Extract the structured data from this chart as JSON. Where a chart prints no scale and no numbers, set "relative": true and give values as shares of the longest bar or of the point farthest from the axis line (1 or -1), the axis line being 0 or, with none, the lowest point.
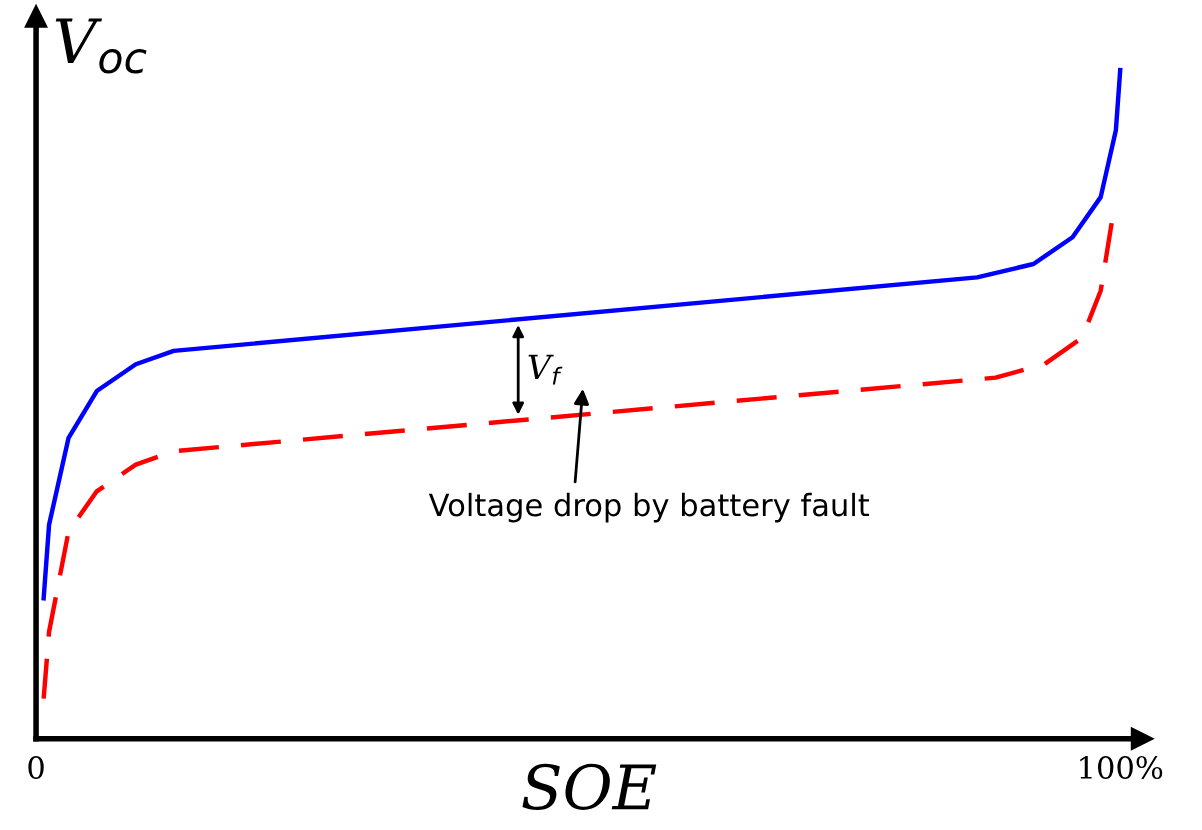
{
  "chart_data": {
    "type": "line",
    "relative": true,
    "xlabel": "SOE",
    "ylabel": "V$_{oc}$",
    "xlim": [
      0,
      102
    ],
    "xticks": [
      {
        "value": 0,
        "label": "0"
      },
      {
        "value": 100,
        "label": "100%"
      }
    ],
    "series": [
      {
        "color": "#0000ff",
        "line_style": "solid",
        "x": [
          0.7,
          1.2,
          3,
          5.6,
          9.2,
          12.7,
          86.8,
          92,
          95.6,
          98.2,
          99.6,
          100
        ],
        "values": [
          0.21,
          0.32,
          0.45,
          0.52,
          0.56,
          0.58,
          0.69,
          0.71,
          0.75,
          0.81,
          0.91,
          1.0
        ]
      },
      {
        "color": "#ff0000",
        "line_style": "dashed",
        "x": [
          0.7,
          1.2,
          3,
          5.6,
          9.2,
          12.7,
          88.5,
          93,
          96.5,
          98.2,
          99.3
        ],
        "values": [
          0.06,
          0.16,
          0.31,
          0.37,
          0.41,
          0.43,
          0.54,
          0.56,
          0.6,
          0.67,
          0.78
        ]
      }
    ],
    "annotations": [
      "V$_{f}$",
      "Voltage drop by battery fault"
    ],
    "grid": false,
    "legend": false,
    "marker": "none"
  }
}
